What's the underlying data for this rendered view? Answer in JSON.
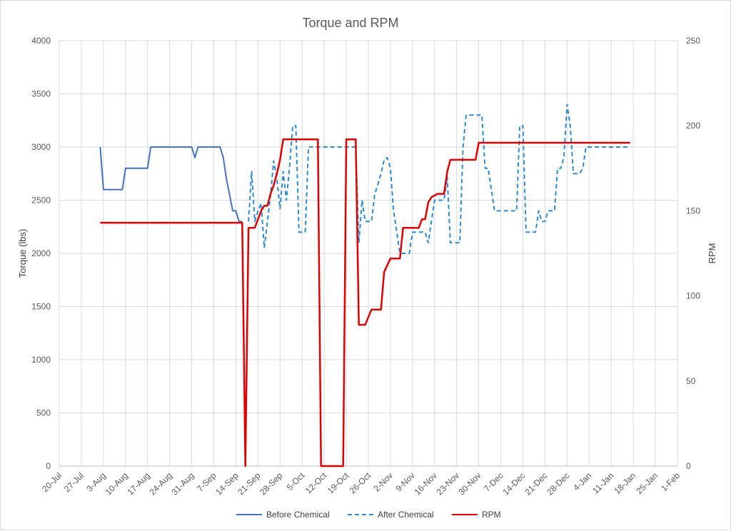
{
  "chart_data": {
    "type": "line",
    "title": "Torque and RPM",
    "ylabel": "Torque (lbs)",
    "y2label": "RPM",
    "xlabel": "",
    "ylim": [
      0,
      4000
    ],
    "y2lim": [
      0,
      250
    ],
    "y_ticks": [
      "0",
      "500",
      "1000",
      "1500",
      "2000",
      "2500",
      "3000",
      "3500",
      "4000"
    ],
    "y2_ticks": [
      "0",
      "50",
      "100",
      "150",
      "200",
      "250"
    ],
    "x_ticks": [
      "20-Jul",
      "27-Jul",
      "3-Aug",
      "10-Aug",
      "17-Aug",
      "24-Aug",
      "31-Aug",
      "7-Sep",
      "14-Sep",
      "21-Sep",
      "28-Sep",
      "5-Oct",
      "12-Oct",
      "19-Oct",
      "26-Oct",
      "2-Nov",
      "9-Nov",
      "16-Nov",
      "23-Nov",
      "30-Nov",
      "7-Dec",
      "14-Dec",
      "21-Dec",
      "28-Dec",
      "4-Jan",
      "11-Jan",
      "18-Jan",
      "25-Jan",
      "1-Feb"
    ],
    "grid": true,
    "legend_position": "bottom",
    "colors": {
      "before": "#4472c4",
      "after": "#2e8bd6",
      "rpm": "#e00000"
    },
    "series": [
      {
        "name": "Before Chemical",
        "axis": "left",
        "style": "solid",
        "x": [
          "2-Aug",
          "3-Aug",
          "4-Aug",
          "9-Aug",
          "10-Aug",
          "17-Aug",
          "18-Aug",
          "24-Aug",
          "31-Aug",
          "1-Sep",
          "2-Sep",
          "8-Sep",
          "9-Sep",
          "10-Sep",
          "11-Sep",
          "12-Sep",
          "13-Sep",
          "14-Sep",
          "15-Sep",
          "16-Sep"
        ],
        "values": [
          3000,
          2600,
          2600,
          2600,
          2800,
          2800,
          3000,
          3000,
          3000,
          2900,
          3000,
          3000,
          3000,
          2900,
          2700,
          2550,
          2400,
          2400,
          2300,
          2300
        ]
      },
      {
        "name": "After Chemical",
        "axis": "left",
        "style": "dashed",
        "x": [
          "18-Sep",
          "19-Sep",
          "20-Sep",
          "21-Sep",
          "22-Sep",
          "23-Sep",
          "24-Sep",
          "25-Sep",
          "26-Sep",
          "27-Sep",
          "28-Sep",
          "29-Sep",
          "30-Sep",
          "1-Oct",
          "2-Oct",
          "3-Oct",
          "4-Oct",
          "5-Oct",
          "6-Oct",
          "7-Oct",
          "8-Oct",
          "9-Oct",
          "10-Oct",
          "19-Oct",
          "20-Oct",
          "21-Oct",
          "22-Oct",
          "23-Oct",
          "24-Oct",
          "25-Oct",
          "26-Oct",
          "27-Oct",
          "28-Oct",
          "29-Oct",
          "30-Oct",
          "31-Oct",
          "1-Nov",
          "2-Nov",
          "3-Nov",
          "4-Nov",
          "5-Nov",
          "6-Nov",
          "7-Nov",
          "8-Nov",
          "9-Nov",
          "10-Nov",
          "12-Nov",
          "13-Nov",
          "14-Nov",
          "16-Nov",
          "19-Nov",
          "20-Nov",
          "21-Nov",
          "22-Nov",
          "23-Nov",
          "24-Nov",
          "25-Nov",
          "26-Nov",
          "27-Nov",
          "30-Nov",
          "1-Dec",
          "2-Dec",
          "3-Dec",
          "5-Dec",
          "12-Dec",
          "13-Dec",
          "14-Dec",
          "15-Dec",
          "16-Dec",
          "18-Dec",
          "19-Dec",
          "20-Dec",
          "21-Dec",
          "22-Dec",
          "23-Dec",
          "24-Dec",
          "25-Dec",
          "26-Dec",
          "27-Dec",
          "28-Dec",
          "29-Dec",
          "30-Dec",
          "31-Dec",
          "1-Jan",
          "2-Jan",
          "3-Jan",
          "4-Jan",
          "5-Jan",
          "10-Jan",
          "15-Jan",
          "16-Jan",
          "17-Jan"
        ],
        "values": [
          2300,
          2770,
          2300,
          2400,
          2470,
          2050,
          2300,
          2550,
          2870,
          2700,
          2420,
          2770,
          2500,
          2800,
          3200,
          3200,
          2200,
          2200,
          2200,
          3000,
          3000,
          3000,
          3000,
          3000,
          3000,
          3000,
          3000,
          2100,
          2500,
          2300,
          2300,
          2300,
          2550,
          2650,
          2750,
          2880,
          2900,
          2800,
          2400,
          2200,
          2000,
          2000,
          2000,
          2000,
          2200,
          2200,
          2200,
          2200,
          2100,
          2500,
          2500,
          2720,
          2100,
          2100,
          2100,
          2100,
          3000,
          3300,
          3300,
          3300,
          3300,
          2800,
          2800,
          2400,
          2400,
          3200,
          3200,
          2200,
          2200,
          2200,
          2400,
          2300,
          2300,
          2400,
          2400,
          2400,
          2800,
          2800,
          2900,
          3400,
          3200,
          2750,
          2750,
          2750,
          2800,
          3000,
          3000,
          3000,
          3000,
          3000,
          3000,
          3000
        ]
      },
      {
        "name": "RPM",
        "axis": "right",
        "style": "solid",
        "x": [
          "2-Aug",
          "16-Sep",
          "17-Sep",
          "18-Sep",
          "19-Sep",
          "20-Sep",
          "21-Sep",
          "22-Sep",
          "23-Sep",
          "24-Sep",
          "25-Sep",
          "26-Sep",
          "27-Sep",
          "28-Sep",
          "29-Sep",
          "30-Sep",
          "6-Oct",
          "7-Oct",
          "8-Oct",
          "9-Oct",
          "10-Oct",
          "11-Oct",
          "12-Oct",
          "17-Oct",
          "18-Oct",
          "19-Oct",
          "20-Oct",
          "21-Oct",
          "22-Oct",
          "23-Oct",
          "24-Oct",
          "25-Oct",
          "27-Oct",
          "28-Oct",
          "29-Oct",
          "30-Oct",
          "31-Oct",
          "1-Nov",
          "2-Nov",
          "3-Nov",
          "4-Nov",
          "5-Nov",
          "6-Nov",
          "7-Nov",
          "8-Nov",
          "9-Nov",
          "10-Nov",
          "11-Nov",
          "12-Nov",
          "13-Nov",
          "14-Nov",
          "15-Nov",
          "16-Nov",
          "17-Nov",
          "18-Nov",
          "19-Nov",
          "20-Nov",
          "21-Nov",
          "22-Nov",
          "28-Nov",
          "29-Nov",
          "30-Nov",
          "17-Jan"
        ],
        "values": [
          143,
          143,
          0,
          140,
          140,
          140,
          145,
          150,
          153,
          153,
          160,
          165,
          172,
          180,
          192,
          192,
          192,
          192,
          192,
          192,
          192,
          0,
          0,
          0,
          0,
          192,
          192,
          192,
          192,
          83,
          83,
          83,
          92,
          92,
          92,
          92,
          114,
          118,
          122,
          122,
          122,
          122,
          140,
          140,
          140,
          140,
          140,
          140,
          145,
          145,
          155,
          158,
          159,
          160,
          160,
          160,
          173,
          180,
          180,
          180,
          180,
          190,
          190
        ]
      }
    ]
  }
}
